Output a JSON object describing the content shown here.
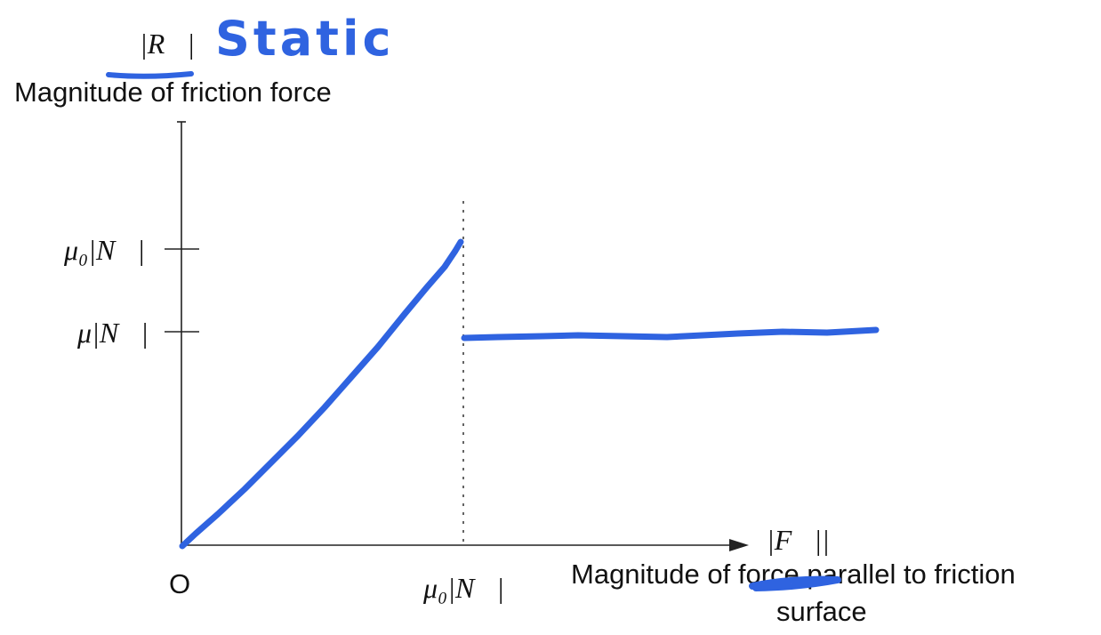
{
  "labels": {
    "y_symbol": "|R⃗|",
    "y_axis_title": "Magnitude of friction force",
    "annotation": "Static",
    "tick_mu0N": "μ₀|N⃗|",
    "tick_muN": "μ|N⃗|",
    "origin": "O",
    "x_tick_mu0N": "μ₀|N⃗|",
    "x_symbol": "|F⃗||",
    "x_axis_title_line1": "Magnitude of force parallel to friction",
    "x_axis_title_line2": "surface"
  },
  "colors": {
    "ink": "#2f63e0",
    "axis": "#222222",
    "text": "#111111"
  }
}
